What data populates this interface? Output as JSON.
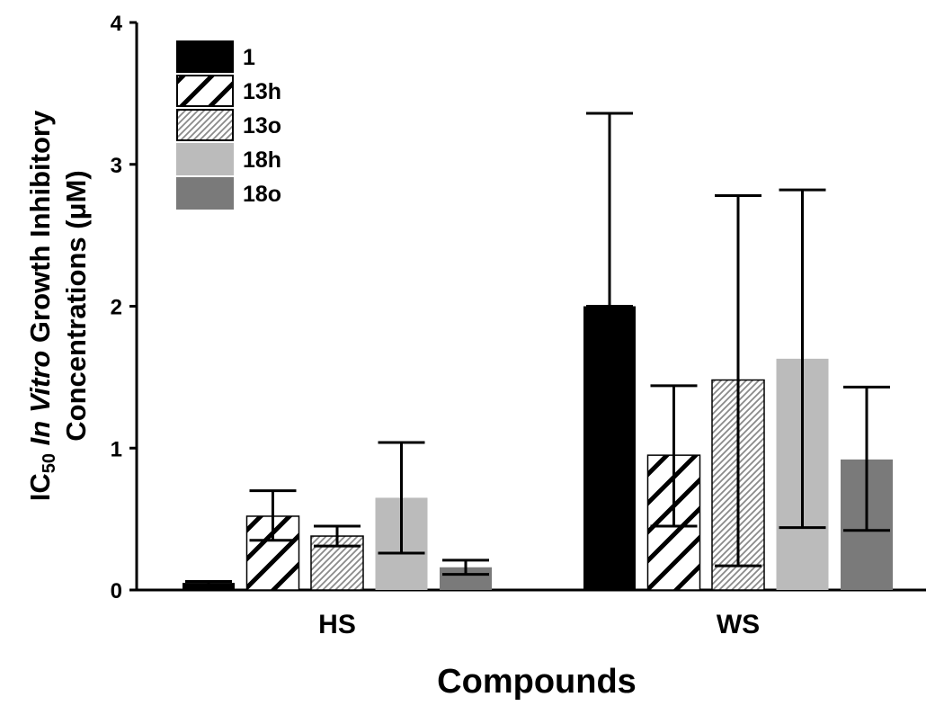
{
  "chart_data": {
    "type": "bar",
    "categories": [
      "HS",
      "WS"
    ],
    "series": [
      {
        "name": "1",
        "pattern": "solid",
        "color": "#000000",
        "values": [
          0.05,
          2.0
        ],
        "err_low": [
          0.04,
          2.0
        ],
        "err_high": [
          0.06,
          3.36
        ]
      },
      {
        "name": "13h",
        "pattern": "wide-hatch",
        "color": "#000000",
        "values": [
          0.52,
          0.95
        ],
        "err_low": [
          0.35,
          0.45
        ],
        "err_high": [
          0.7,
          1.44
        ]
      },
      {
        "name": "13o",
        "pattern": "fine-hatch",
        "color": "#888888",
        "values": [
          0.38,
          1.48
        ],
        "err_low": [
          0.31,
          0.17
        ],
        "err_high": [
          0.45,
          2.78
        ]
      },
      {
        "name": "18h",
        "pattern": "solid",
        "color": "#bbbbbb",
        "values": [
          0.65,
          1.63
        ],
        "err_low": [
          0.26,
          0.44
        ],
        "err_high": [
          1.04,
          2.82
        ]
      },
      {
        "name": "18o",
        "pattern": "solid",
        "color": "#7a7a7a",
        "values": [
          0.16,
          0.92
        ],
        "err_low": [
          0.11,
          0.42
        ],
        "err_high": [
          0.21,
          1.43
        ]
      }
    ],
    "yticks": [
      "0",
      "1",
      "2",
      "3",
      "4"
    ],
    "ylim": [
      0,
      4
    ],
    "xlabel": "Compounds",
    "ylabel_line1_prefix": "IC",
    "ylabel_line1_sub": "50",
    "ylabel_line1_italic": " In Vitro",
    "ylabel_line1_suffix": " Growth Inhibitory",
    "ylabel_line2": "Concentrations (μM)",
    "legend_position": "top-left",
    "grid": false
  }
}
